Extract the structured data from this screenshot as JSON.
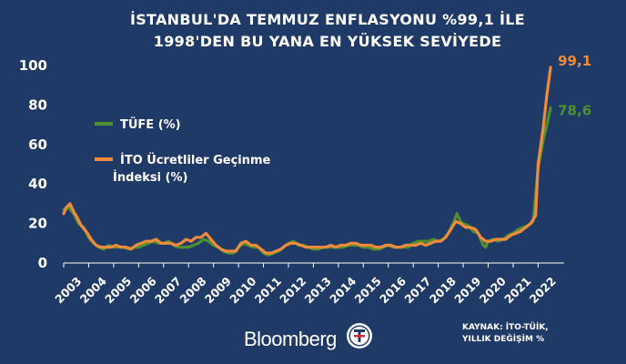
{
  "header": {
    "title_line1": "İSTANBUL'DA TEMMUZ ENFLASYONU %99,1 İLE",
    "title_line2": "1998'DEN BU YANA EN YÜKSEK SEVİYEDE"
  },
  "footer": {
    "brand": "Bloomberg",
    "source_line1": "KAYNAK: İTO-TÜİK,",
    "source_line2": "YILLIK DEĞİŞİM %"
  },
  "colors": {
    "background": "#1f3a66",
    "tufe": "#4f8f2f",
    "ito": "#f08a3c",
    "text": "#ffffff"
  },
  "chart_data": {
    "type": "line",
    "title": "İSTANBUL'DA TEMMUZ ENFLASYONU %99,1 İLE 1998'DEN BU YANA EN YÜKSEK SEVİYEDE",
    "xlabel": "",
    "ylabel": "",
    "ylim": [
      0,
      100
    ],
    "yticks": [
      0,
      20,
      40,
      60,
      80,
      100
    ],
    "xticks": [
      "2003",
      "2004",
      "2005",
      "2006",
      "2007",
      "2008",
      "2009",
      "2010",
      "2011",
      "2012",
      "2013",
      "2014",
      "2015",
      "2016",
      "2017",
      "2018",
      "2019",
      "2020",
      "2021",
      "2022"
    ],
    "grid": false,
    "legend_position": "left",
    "series": [
      {
        "name": "TÜFE (%)",
        "color": "#4f8f2f",
        "end_label": "78,6",
        "points": [
          [
            2003.0,
            27
          ],
          [
            2003.2,
            28
          ],
          [
            2003.4,
            25
          ],
          [
            2003.6,
            20
          ],
          [
            2003.8,
            18
          ],
          [
            2004.0,
            13
          ],
          [
            2004.2,
            10
          ],
          [
            2004.4,
            8
          ],
          [
            2004.6,
            7
          ],
          [
            2004.8,
            9
          ],
          [
            2005.0,
            8
          ],
          [
            2005.2,
            8
          ],
          [
            2005.4,
            8
          ],
          [
            2005.6,
            7
          ],
          [
            2005.8,
            8
          ],
          [
            2006.0,
            8
          ],
          [
            2006.2,
            9
          ],
          [
            2006.4,
            10
          ],
          [
            2006.6,
            11
          ],
          [
            2006.8,
            10
          ],
          [
            2007.0,
            10
          ],
          [
            2007.2,
            11
          ],
          [
            2007.4,
            9
          ],
          [
            2007.6,
            8
          ],
          [
            2007.8,
            8
          ],
          [
            2008.0,
            8
          ],
          [
            2008.2,
            9
          ],
          [
            2008.4,
            10
          ],
          [
            2008.6,
            12
          ],
          [
            2008.8,
            11
          ],
          [
            2009.0,
            9
          ],
          [
            2009.2,
            8
          ],
          [
            2009.4,
            6
          ],
          [
            2009.6,
            5
          ],
          [
            2009.8,
            5
          ],
          [
            2010.0,
            8
          ],
          [
            2010.2,
            10
          ],
          [
            2010.4,
            9
          ],
          [
            2010.6,
            8
          ],
          [
            2010.8,
            8
          ],
          [
            2011.0,
            5
          ],
          [
            2011.2,
            4
          ],
          [
            2011.4,
            5
          ],
          [
            2011.6,
            6
          ],
          [
            2011.8,
            8
          ],
          [
            2012.0,
            10
          ],
          [
            2012.2,
            11
          ],
          [
            2012.4,
            9
          ],
          [
            2012.6,
            9
          ],
          [
            2012.8,
            8
          ],
          [
            2013.0,
            7
          ],
          [
            2013.2,
            7
          ],
          [
            2013.4,
            8
          ],
          [
            2013.6,
            8
          ],
          [
            2013.8,
            8
          ],
          [
            2014.0,
            8
          ],
          [
            2014.2,
            8
          ],
          [
            2014.4,
            9
          ],
          [
            2014.6,
            9
          ],
          [
            2014.8,
            9
          ],
          [
            2015.0,
            8
          ],
          [
            2015.2,
            8
          ],
          [
            2015.4,
            7
          ],
          [
            2015.6,
            7
          ],
          [
            2015.8,
            8
          ],
          [
            2016.0,
            9
          ],
          [
            2016.2,
            8
          ],
          [
            2016.4,
            8
          ],
          [
            2016.6,
            8
          ],
          [
            2016.8,
            8
          ],
          [
            2017.0,
            10
          ],
          [
            2017.2,
            11
          ],
          [
            2017.4,
            11
          ],
          [
            2017.6,
            11
          ],
          [
            2017.8,
            12
          ],
          [
            2018.0,
            11
          ],
          [
            2018.2,
            12
          ],
          [
            2018.4,
            15
          ],
          [
            2018.6,
            20
          ],
          [
            2018.75,
            25
          ],
          [
            2018.9,
            21
          ],
          [
            2019.0,
            20
          ],
          [
            2019.2,
            19
          ],
          [
            2019.4,
            16
          ],
          [
            2019.6,
            15
          ],
          [
            2019.8,
            9
          ],
          [
            2019.9,
            8
          ],
          [
            2020.0,
            11
          ],
          [
            2020.2,
            12
          ],
          [
            2020.4,
            11
          ],
          [
            2020.6,
            12
          ],
          [
            2020.8,
            14
          ],
          [
            2021.0,
            15
          ],
          [
            2021.2,
            17
          ],
          [
            2021.4,
            18
          ],
          [
            2021.6,
            19
          ],
          [
            2021.8,
            21
          ],
          [
            2022.0,
            48
          ],
          [
            2022.2,
            62
          ],
          [
            2022.35,
            70
          ],
          [
            2022.5,
            78.6
          ]
        ]
      },
      {
        "name": "İTO Ücretliler Geçinme İndeksi (%)",
        "color": "#f08a3c",
        "end_label": "99,1",
        "points": [
          [
            2003.0,
            25
          ],
          [
            2003.1,
            28
          ],
          [
            2003.25,
            30
          ],
          [
            2003.4,
            26
          ],
          [
            2003.5,
            24
          ],
          [
            2003.7,
            19
          ],
          [
            2003.9,
            16
          ],
          [
            2004.1,
            12
          ],
          [
            2004.3,
            9
          ],
          [
            2004.5,
            8
          ],
          [
            2004.7,
            8
          ],
          [
            2004.9,
            8
          ],
          [
            2005.1,
            9
          ],
          [
            2005.3,
            8
          ],
          [
            2005.5,
            8
          ],
          [
            2005.7,
            7
          ],
          [
            2005.9,
            9
          ],
          [
            2006.1,
            10
          ],
          [
            2006.3,
            11
          ],
          [
            2006.5,
            11
          ],
          [
            2006.7,
            12
          ],
          [
            2006.9,
            10
          ],
          [
            2007.1,
            10
          ],
          [
            2007.3,
            10
          ],
          [
            2007.5,
            9
          ],
          [
            2007.7,
            10
          ],
          [
            2007.9,
            12
          ],
          [
            2008.1,
            11
          ],
          [
            2008.3,
            13
          ],
          [
            2008.5,
            13
          ],
          [
            2008.7,
            15
          ],
          [
            2008.9,
            12
          ],
          [
            2009.1,
            9
          ],
          [
            2009.3,
            7
          ],
          [
            2009.5,
            6
          ],
          [
            2009.7,
            6
          ],
          [
            2009.9,
            6
          ],
          [
            2010.1,
            10
          ],
          [
            2010.3,
            11
          ],
          [
            2010.5,
            9
          ],
          [
            2010.7,
            9
          ],
          [
            2010.9,
            7
          ],
          [
            2011.1,
            5
          ],
          [
            2011.3,
            5
          ],
          [
            2011.5,
            6
          ],
          [
            2011.7,
            7
          ],
          [
            2011.9,
            9
          ],
          [
            2012.1,
            10
          ],
          [
            2012.3,
            10
          ],
          [
            2012.5,
            9
          ],
          [
            2012.7,
            8
          ],
          [
            2012.9,
            8
          ],
          [
            2013.1,
            8
          ],
          [
            2013.3,
            8
          ],
          [
            2013.5,
            8
          ],
          [
            2013.7,
            9
          ],
          [
            2013.9,
            8
          ],
          [
            2014.1,
            9
          ],
          [
            2014.3,
            9
          ],
          [
            2014.5,
            10
          ],
          [
            2014.7,
            10
          ],
          [
            2014.9,
            9
          ],
          [
            2015.1,
            9
          ],
          [
            2015.3,
            9
          ],
          [
            2015.5,
            8
          ],
          [
            2015.7,
            8
          ],
          [
            2015.9,
            9
          ],
          [
            2016.1,
            9
          ],
          [
            2016.3,
            8
          ],
          [
            2016.5,
            8
          ],
          [
            2016.7,
            9
          ],
          [
            2016.9,
            9
          ],
          [
            2017.1,
            9
          ],
          [
            2017.3,
            10
          ],
          [
            2017.5,
            9
          ],
          [
            2017.7,
            10
          ],
          [
            2017.9,
            11
          ],
          [
            2018.1,
            11
          ],
          [
            2018.3,
            13
          ],
          [
            2018.5,
            17
          ],
          [
            2018.7,
            21
          ],
          [
            2018.9,
            20
          ],
          [
            2019.1,
            18
          ],
          [
            2019.3,
            18
          ],
          [
            2019.5,
            17
          ],
          [
            2019.7,
            13
          ],
          [
            2019.9,
            11
          ],
          [
            2020.1,
            11
          ],
          [
            2020.3,
            12
          ],
          [
            2020.5,
            12
          ],
          [
            2020.7,
            12
          ],
          [
            2020.9,
            14
          ],
          [
            2021.1,
            15
          ],
          [
            2021.3,
            16
          ],
          [
            2021.5,
            18
          ],
          [
            2021.7,
            20
          ],
          [
            2021.9,
            24
          ],
          [
            2022.0,
            50
          ],
          [
            2022.2,
            68
          ],
          [
            2022.35,
            85
          ],
          [
            2022.5,
            99.1
          ]
        ]
      }
    ]
  }
}
